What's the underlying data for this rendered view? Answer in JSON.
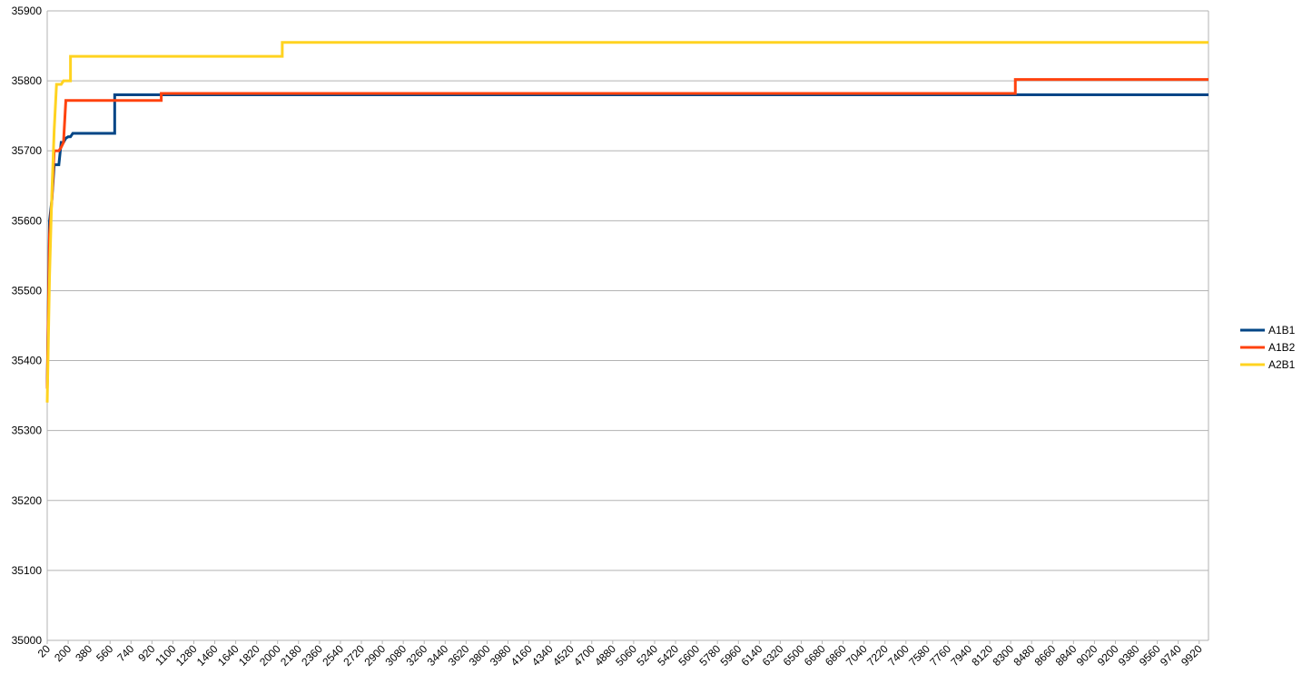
{
  "chart_data": {
    "type": "line",
    "title": "",
    "xlabel": "",
    "ylabel": "",
    "ylim": [
      35000,
      35900
    ],
    "xlim": [
      20,
      10000
    ],
    "y_ticks": [
      "35000",
      "35100",
      "35200",
      "35300",
      "35400",
      "35500",
      "35600",
      "35700",
      "35800",
      "35900"
    ],
    "x_tick_labels": [
      "20",
      "200",
      "380",
      "560",
      "740",
      "920",
      "1100",
      "1280",
      "1460",
      "1640",
      "1820",
      "2000",
      "2180",
      "2360",
      "2540",
      "2720",
      "2900",
      "3080",
      "3260",
      "3440",
      "3620",
      "3800",
      "3980",
      "4160",
      "4340",
      "4520",
      "4700",
      "4880",
      "5060",
      "5240",
      "5420",
      "5600",
      "5780",
      "5960",
      "6140",
      "6320",
      "6500",
      "6680",
      "6860",
      "7040",
      "7220",
      "7400",
      "7580",
      "7760",
      "7940",
      "8120",
      "8300",
      "8480",
      "8660",
      "8840",
      "9020",
      "9200",
      "9380",
      "9560",
      "9740",
      "9920"
    ],
    "grid": "horizontal",
    "legend_position": "right",
    "series": [
      {
        "name": "A1B1",
        "color": "#004586",
        "points": [
          [
            20,
            35360
          ],
          [
            40,
            35600
          ],
          [
            60,
            35630
          ],
          [
            80,
            35680
          ],
          [
            100,
            35680
          ],
          [
            120,
            35680
          ],
          [
            140,
            35712
          ],
          [
            160,
            35712
          ],
          [
            180,
            35718
          ],
          [
            200,
            35720
          ],
          [
            220,
            35720
          ],
          [
            240,
            35725
          ],
          [
            600,
            35725
          ],
          [
            600,
            35780
          ],
          [
            10000,
            35780
          ]
        ]
      },
      {
        "name": "A1B2",
        "color": "#ff420e",
        "points": [
          [
            20,
            35360
          ],
          [
            40,
            35580
          ],
          [
            60,
            35630
          ],
          [
            80,
            35700
          ],
          [
            100,
            35700
          ],
          [
            120,
            35700
          ],
          [
            140,
            35705
          ],
          [
            160,
            35712
          ],
          [
            180,
            35772
          ],
          [
            1000,
            35772
          ],
          [
            1000,
            35782
          ],
          [
            8340,
            35782
          ],
          [
            8340,
            35802
          ],
          [
            10000,
            35802
          ]
        ]
      },
      {
        "name": "A2B1",
        "color": "#ffd320",
        "points": [
          [
            20,
            35340
          ],
          [
            40,
            35520
          ],
          [
            60,
            35640
          ],
          [
            80,
            35730
          ],
          [
            100,
            35795
          ],
          [
            140,
            35795
          ],
          [
            160,
            35800
          ],
          [
            220,
            35800
          ],
          [
            220,
            35835
          ],
          [
            2040,
            35835
          ],
          [
            2040,
            35855
          ],
          [
            10000,
            35855
          ]
        ]
      }
    ]
  }
}
